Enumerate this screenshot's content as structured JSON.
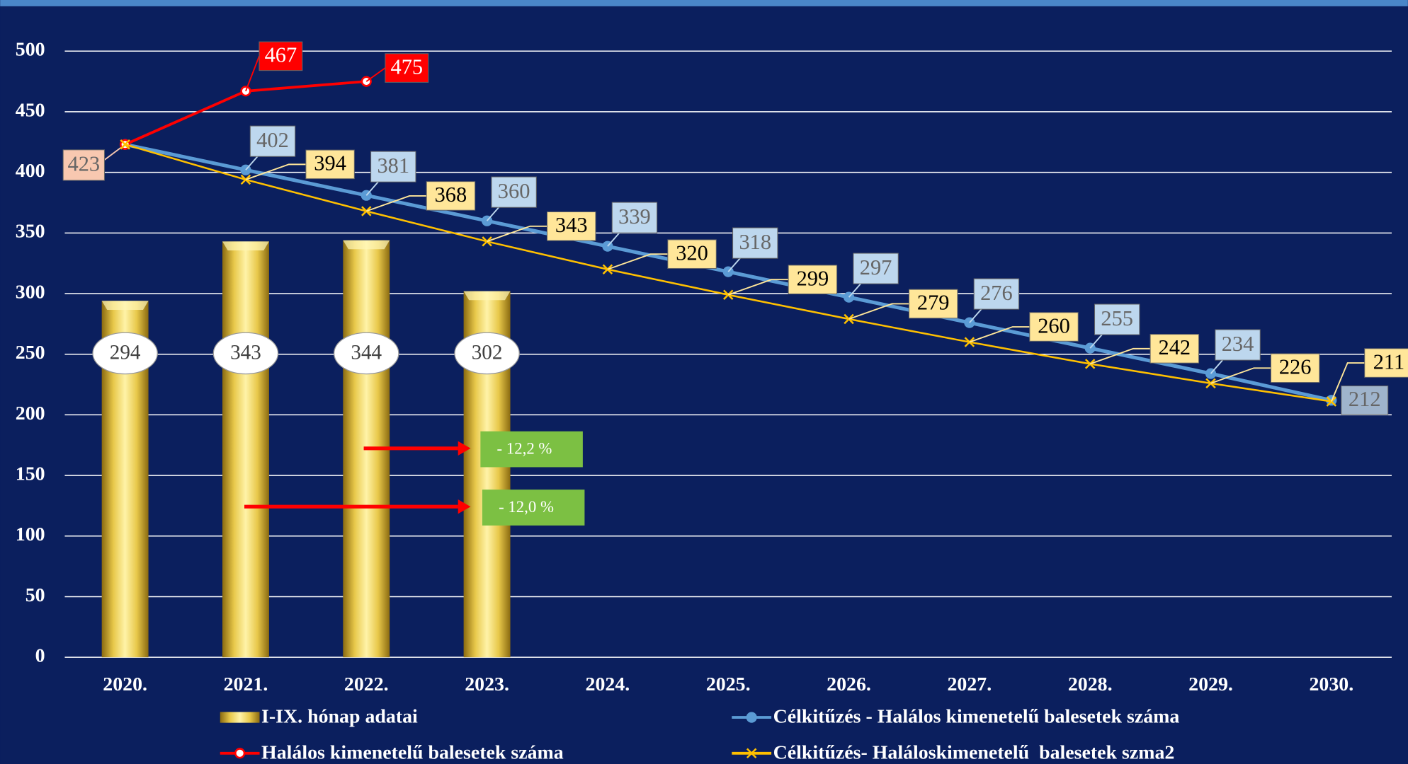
{
  "chart_data": {
    "type": "combo",
    "categories": [
      "2020.",
      "2021.",
      "2022.",
      "2023.",
      "2024.",
      "2025.",
      "2026.",
      "2027.",
      "2028.",
      "2029.",
      "2030."
    ],
    "series": [
      {
        "name": "I-IX. hónap adatai",
        "type": "bar",
        "color": "#e8c84a",
        "values": [
          294,
          343,
          344,
          302,
          null,
          null,
          null,
          null,
          null,
          null,
          null
        ]
      },
      {
        "name": "Célkitűzés - Halálos kimenetelű balesetek száma",
        "type": "line",
        "color": "#5b9bd5",
        "values": [
          423,
          402,
          381,
          360,
          339,
          318,
          297,
          276,
          255,
          234,
          212
        ]
      },
      {
        "name": "Halálos kimenetelű balesetek száma",
        "type": "line",
        "color": "#ff0000",
        "values": [
          423,
          467,
          475,
          null,
          null,
          null,
          null,
          null,
          null,
          null,
          null
        ]
      },
      {
        "name": "Célkitűzés- Haláloskimenetelű  balesetek szma2",
        "type": "line",
        "color": "#ffc000",
        "values": [
          423,
          394,
          368,
          343,
          320,
          299,
          279,
          260,
          242,
          226,
          211
        ]
      }
    ],
    "annotations": [
      "- 12,2 %",
      "- 12,0 %"
    ],
    "ylim": [
      0,
      500
    ],
    "yticks": [
      0,
      50,
      100,
      150,
      200,
      250,
      300,
      350,
      400,
      450,
      500
    ],
    "grid": true
  }
}
